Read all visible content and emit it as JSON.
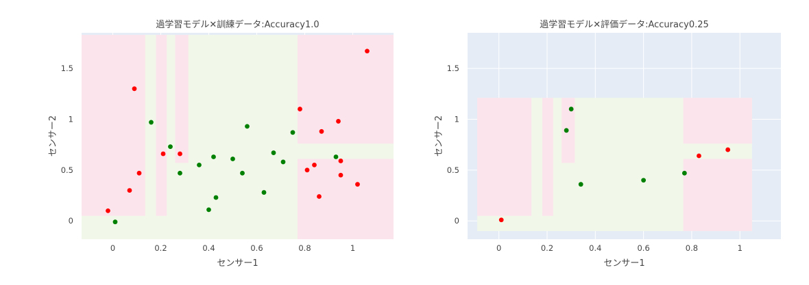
{
  "colors": {
    "plot_bg": "#e5ecf6",
    "region_red": "#fce4ec",
    "region_green": "#f1f8e9",
    "point_red": "#ff0000",
    "point_green": "#008000",
    "text": "#444444"
  },
  "chart_data": [
    {
      "type": "scatter",
      "title": "過学習モデル✕訓練データ:Accuracy1.0",
      "xlabel": "センサー1",
      "ylabel": "センサー2",
      "xlim": [
        -0.13,
        1.17
      ],
      "ylim": [
        -0.18,
        1.85
      ],
      "xticks": [
        0,
        0.2,
        0.4,
        0.6,
        0.8,
        1
      ],
      "xtick_labels": [
        "0",
        "0.2",
        "0.4",
        "0.6",
        "0.8",
        "1"
      ],
      "yticks": [
        0,
        0.5,
        1,
        1.5
      ],
      "ytick_labels": [
        "0",
        "0.5",
        "1",
        "1.5"
      ],
      "grid": true,
      "regions": {
        "x_range": [
          -0.13,
          1.17
        ],
        "y_range": [
          -0.18,
          1.83
        ],
        "red": [
          [
            -0.13,
            0.135,
            0.05,
            1.83
          ],
          [
            0.18,
            0.225,
            0.05,
            1.83
          ],
          [
            0.26,
            0.315,
            0.57,
            1.83
          ],
          [
            0.77,
            1.17,
            0.76,
            1.83
          ],
          [
            0.77,
            1.17,
            -0.18,
            0.61
          ]
        ]
      },
      "series": [
        {
          "name": "red",
          "x": [
            -0.02,
            0.07,
            0.09,
            0.11,
            0.21,
            0.28,
            0.78,
            0.81,
            0.84,
            0.86,
            0.87,
            0.94,
            0.95,
            0.95,
            1.02,
            1.06
          ],
          "y": [
            0.1,
            0.3,
            1.3,
            0.47,
            0.66,
            0.66,
            1.1,
            0.5,
            0.55,
            0.24,
            0.88,
            0.98,
            0.59,
            0.45,
            0.36,
            1.67
          ]
        },
        {
          "name": "green",
          "x": [
            0.01,
            0.16,
            0.24,
            0.28,
            0.36,
            0.4,
            0.42,
            0.43,
            0.5,
            0.54,
            0.56,
            0.63,
            0.67,
            0.71,
            0.75,
            0.93
          ],
          "y": [
            -0.01,
            0.97,
            0.73,
            0.47,
            0.55,
            0.11,
            0.63,
            0.23,
            0.61,
            0.47,
            0.93,
            0.28,
            0.67,
            0.58,
            0.87,
            0.63
          ]
        }
      ]
    },
    {
      "type": "scatter",
      "title": "過学習モデル✕評価データ:Accuracy0.25",
      "xlabel": "センサー1",
      "ylabel": "センサー2",
      "xlim": [
        -0.13,
        1.17
      ],
      "ylim": [
        -0.18,
        1.85
      ],
      "xticks": [
        0,
        0.2,
        0.4,
        0.6,
        0.8,
        1
      ],
      "xtick_labels": [
        "0",
        "0.2",
        "0.4",
        "0.6",
        "0.8",
        "1"
      ],
      "yticks": [
        0,
        0.5,
        1,
        1.5
      ],
      "ytick_labels": [
        "0",
        "0.5",
        "1",
        "1.5"
      ],
      "grid": true,
      "regions": {
        "x_range": [
          -0.09,
          1.05
        ],
        "y_range": [
          -0.1,
          1.21
        ],
        "red": [
          [
            -0.09,
            0.135,
            0.05,
            1.21
          ],
          [
            0.18,
            0.225,
            0.05,
            1.21
          ],
          [
            0.26,
            0.315,
            0.57,
            1.21
          ],
          [
            0.765,
            1.05,
            0.76,
            1.21
          ],
          [
            0.765,
            1.05,
            -0.1,
            0.61
          ]
        ]
      },
      "series": [
        {
          "name": "red",
          "x": [
            0.01,
            0.83,
            0.95
          ],
          "y": [
            0.01,
            0.64,
            0.7
          ]
        },
        {
          "name": "green",
          "x": [
            0.28,
            0.3,
            0.34,
            0.6,
            0.77
          ],
          "y": [
            0.89,
            1.1,
            0.36,
            0.4,
            0.47
          ]
        }
      ]
    }
  ]
}
